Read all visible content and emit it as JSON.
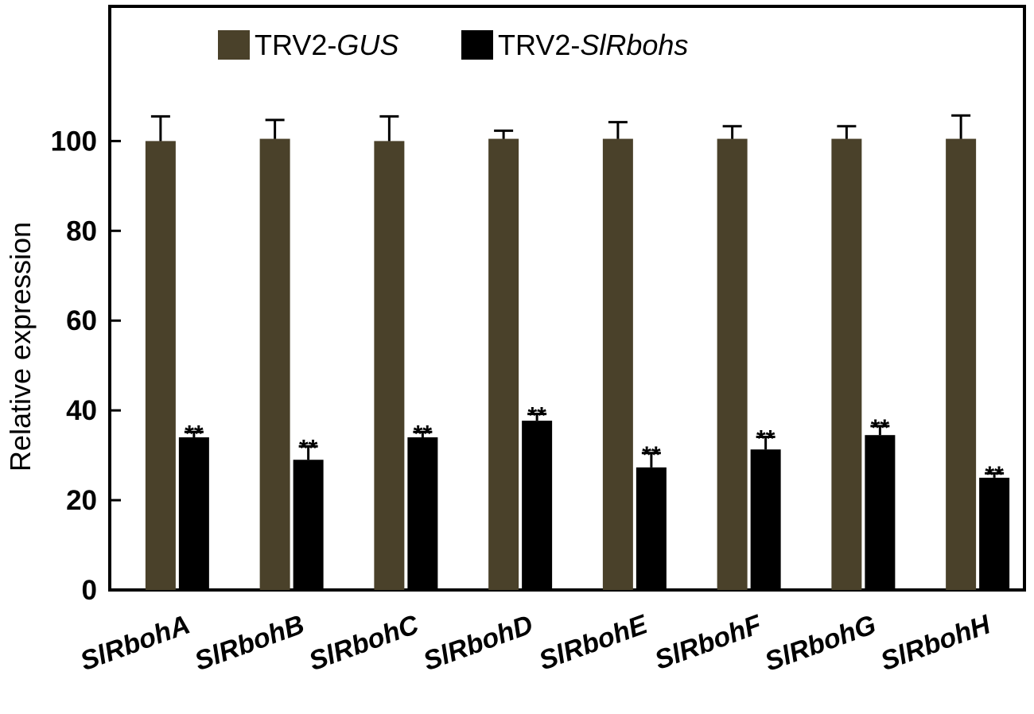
{
  "chart_data": {
    "type": "bar",
    "title": "",
    "xlabel": "",
    "ylabel": "Relative expression",
    "ylim": [
      0,
      130
    ],
    "yticks": [
      0,
      20,
      40,
      60,
      80,
      100
    ],
    "grid": false,
    "legend_position": "top",
    "categories": [
      "SlRbohA",
      "SlRbohB",
      "SlRbohC",
      "SlRbohD",
      "SlRbohE",
      "SlRbohF",
      "SlRbohG",
      "SlRbohH"
    ],
    "series": [
      {
        "name": "TRV2-GUS",
        "name_prefix": "TRV2-",
        "name_italic": "GUS",
        "color": "#4a412a",
        "values": [
          100,
          100.5,
          100,
          100.5,
          100.5,
          100.5,
          100.5,
          100.5
        ],
        "errors": [
          5.5,
          4.2,
          5.5,
          1.8,
          3.7,
          2.8,
          2.8,
          5.2
        ],
        "annotations": [
          "",
          "",
          "",
          "",
          "",
          "",
          "",
          ""
        ]
      },
      {
        "name": "TRV2-SlRbohs",
        "name_prefix": "TRV2-",
        "name_italic": "SlRbohs",
        "color": "#000000",
        "values": [
          34,
          29,
          34,
          37.7,
          27.3,
          31.3,
          34.5,
          25
        ],
        "errors": [
          1.2,
          3.0,
          1.2,
          1.5,
          3.2,
          2.8,
          2.0,
          1.0
        ],
        "annotations": [
          "**",
          "**",
          "**",
          "**",
          "**",
          "**",
          "**",
          "**"
        ]
      }
    ]
  }
}
